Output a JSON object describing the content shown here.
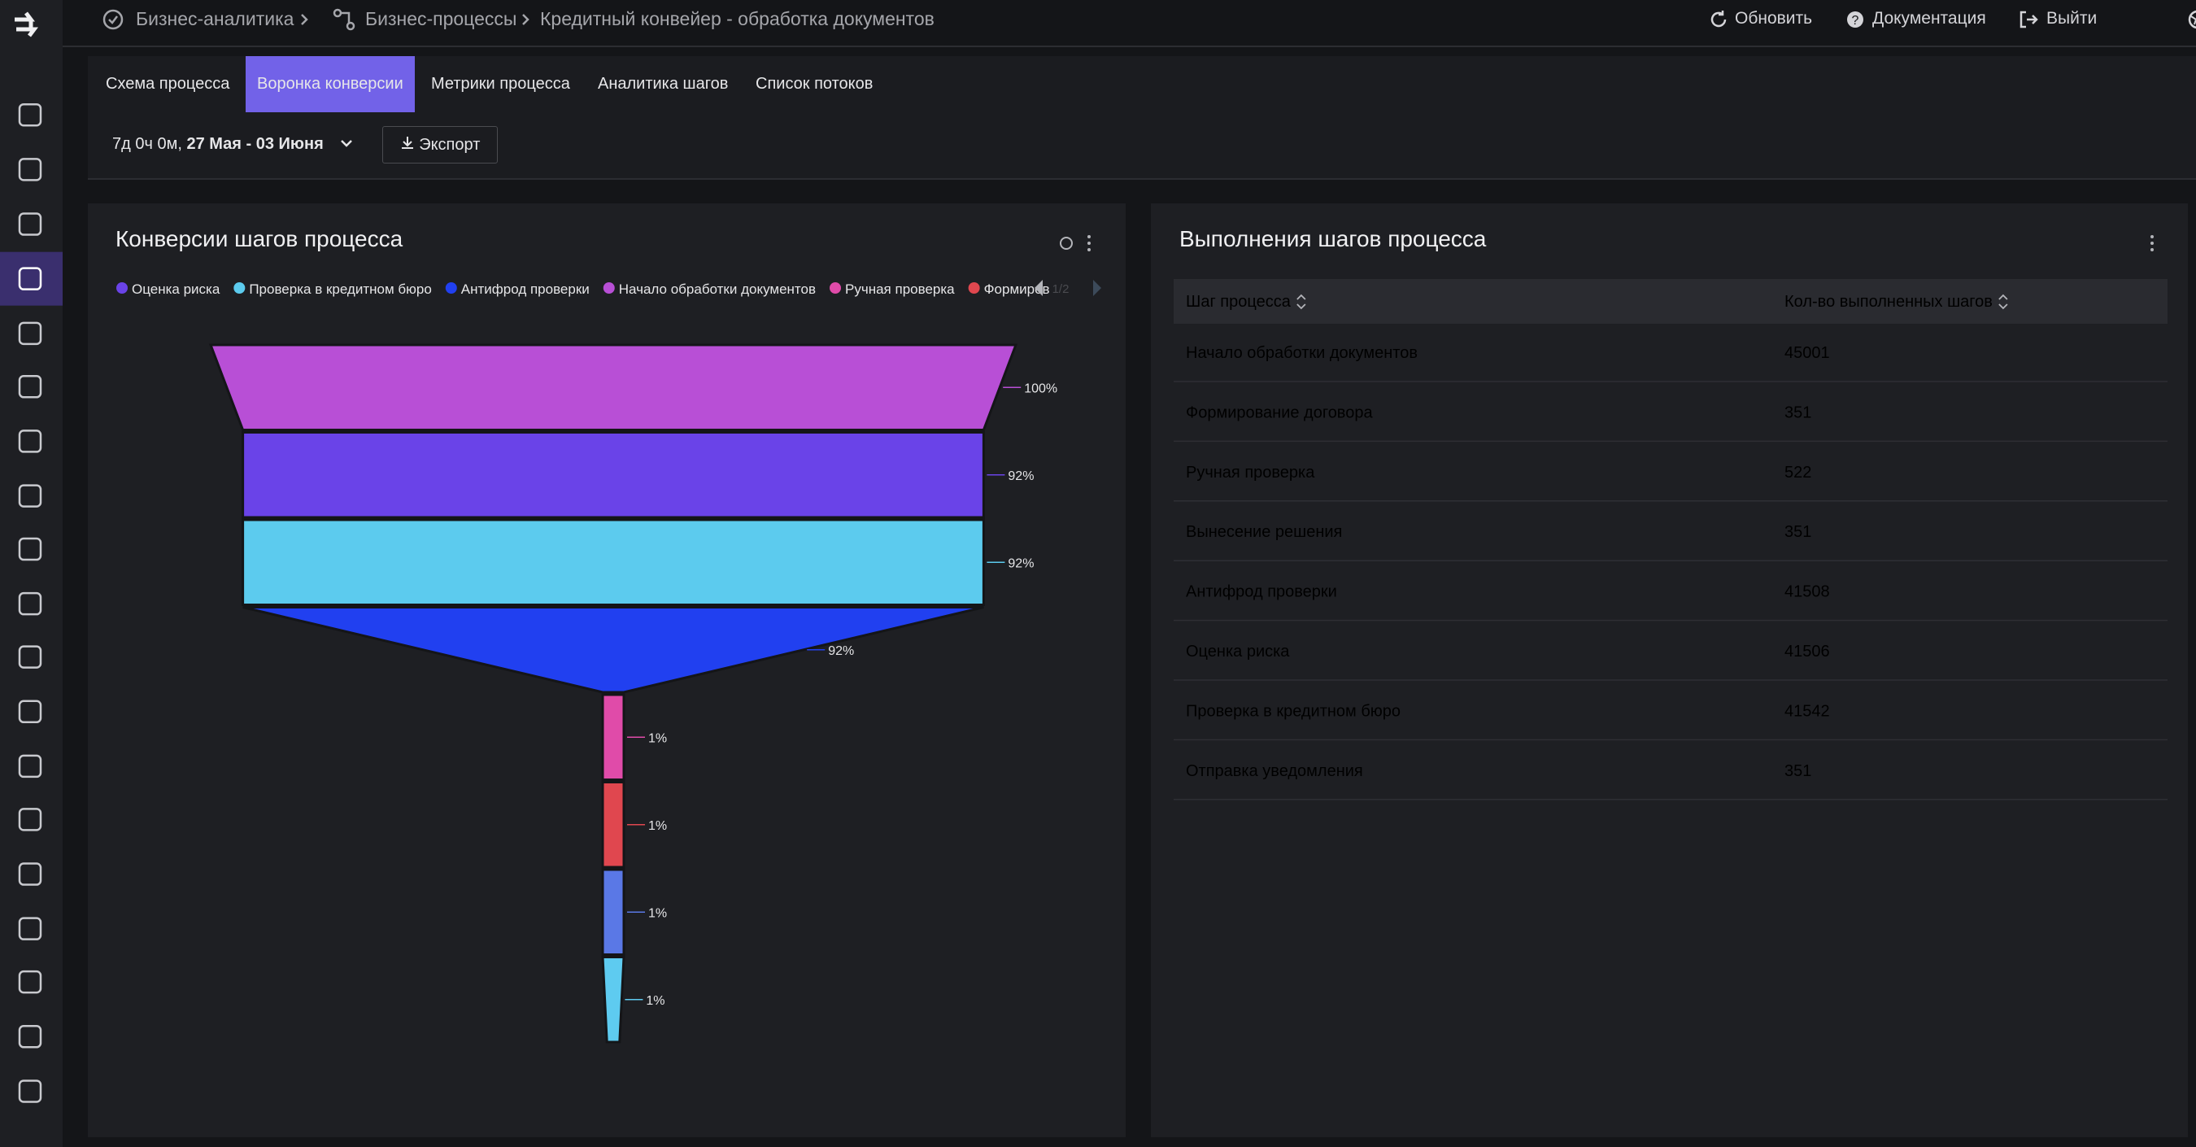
{
  "breadcrumbs": [
    "Бизнес-аналитика",
    "Бизнес-процессы",
    "Кредитный конвейер - обработка документов"
  ],
  "header_actions": [
    "Обновить",
    "Документация",
    "Выйти"
  ],
  "tabs": {
    "items": [
      "Схема процесса",
      "Воронка конверсии",
      "Метрики процесса",
      "Аналитика шагов",
      "Список потоков"
    ],
    "active": 1
  },
  "filter": {
    "duration": "7д 0ч 0м,",
    "range": "27 Мая - 03 Июня",
    "export": "Экспорт"
  },
  "chart_data": {
    "type": "funnel",
    "title": "Конверсии шагов процесса",
    "legend": {
      "items": [
        {
          "name": "Оценка риска",
          "color": "#6a43e8"
        },
        {
          "name": "Проверка в кредитном бюро",
          "color": "#5ccbee"
        },
        {
          "name": "Антифрод проверки",
          "color": "#2140f0"
        },
        {
          "name": "Начало обработки документов",
          "color": "#b84fd6"
        },
        {
          "name": "Ручная проверка",
          "color": "#e04ba9"
        },
        {
          "name": "Формиров",
          "color": "#e0474f"
        }
      ],
      "page": "1/2"
    },
    "values": [
      100,
      92,
      92,
      92,
      1,
      1,
      1,
      1
    ],
    "value_labels": [
      "100%",
      "92%",
      "92%",
      "92%",
      "1%",
      "1%",
      "1%",
      "1%"
    ],
    "colors": [
      "#b84fd6",
      "#6a43e8",
      "#5ccbee",
      "#2140f0",
      "#e04ba9",
      "#e0474f",
      "#5a78e6",
      "#5ecbf0"
    ]
  },
  "table": {
    "title": "Выполнения шагов процесса",
    "columns": [
      "Шаг процесса",
      "Кол-во выполненных шагов"
    ],
    "rows": [
      [
        "Начало обработки документов",
        45001
      ],
      [
        "Формирование договора",
        351
      ],
      [
        "Ручная проверка",
        522
      ],
      [
        "Вынесение решения",
        351
      ],
      [
        "Антифрод проверки",
        41508
      ],
      [
        "Оценка риска",
        41506
      ],
      [
        "Проверка в кредитном бюро",
        41542
      ],
      [
        "Отправка уведомления",
        351
      ]
    ]
  }
}
